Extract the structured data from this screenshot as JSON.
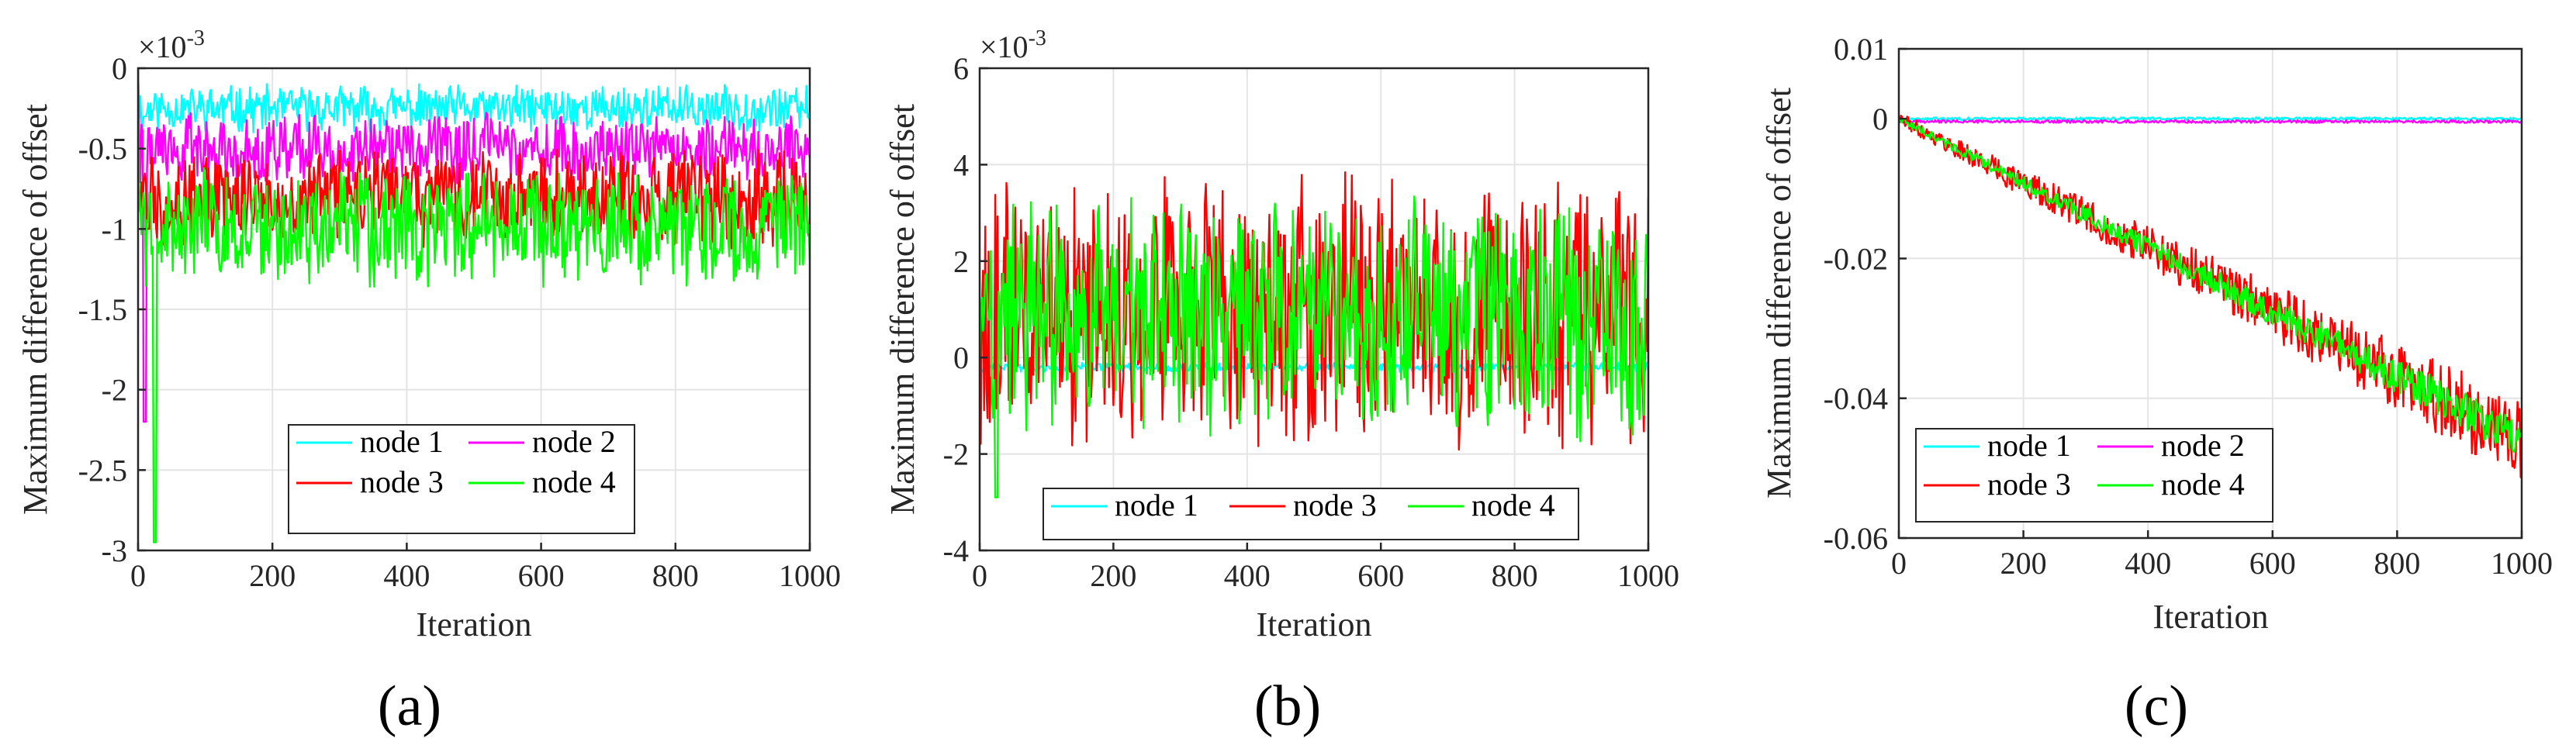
{
  "colors": {
    "node 1": "#00ffff",
    "node 2": "#ff00ff",
    "node 3": "#ff0000",
    "node 4": "#00ff00"
  },
  "chart_data": [
    {
      "panel": "(a)",
      "type": "line",
      "xlabel": "Iteration",
      "ylabel": "Maximum difference of offset",
      "exponent_label": "×10",
      "exponent_power": "-3",
      "xlim": [
        0,
        1000
      ],
      "ylim": [
        -3,
        0
      ],
      "xticks": [
        0,
        200,
        400,
        600,
        800,
        1000
      ],
      "xtick_labels": [
        "0",
        "200",
        "400",
        "600",
        "800",
        "1000"
      ],
      "yticks": [
        0,
        -0.5,
        -1,
        -1.5,
        -2,
        -2.5,
        -3
      ],
      "ytick_labels": [
        "0",
        "-0.5",
        "-1",
        "-1.5",
        "-2",
        "-2.5",
        "-3"
      ],
      "legend": {
        "position": "bottom-right",
        "columns": 2,
        "entries": [
          "node 1",
          "node 2",
          "node 3",
          "node 4"
        ]
      },
      "series": [
        {
          "name": "node 1",
          "shape": "noisy",
          "start": 0,
          "dip": [
            [
              10,
              -0.3
            ]
          ],
          "mean": -0.25,
          "amp": 0.12,
          "seed": 11
        },
        {
          "name": "node 2",
          "shape": "noisy",
          "start": 0,
          "dip": [
            [
              10,
              -2.2
            ]
          ],
          "mean": -0.5,
          "amp": 0.18,
          "seed": 22
        },
        {
          "name": "node 3",
          "shape": "noisy",
          "start": 0,
          "dip": [
            [
              15,
              -1.0
            ]
          ],
          "mean": -0.8,
          "amp": 0.25,
          "seed": 33
        },
        {
          "name": "node 4",
          "shape": "noisy",
          "start": 0,
          "dip": [
            [
              25,
              -2.95
            ]
          ],
          "mean": -1.0,
          "amp": 0.3,
          "seed": 44
        }
      ]
    },
    {
      "panel": "(b)",
      "type": "line",
      "xlabel": "Iteration",
      "ylabel": "Maximum difference of offset",
      "exponent_label": "×10",
      "exponent_power": "-3",
      "xlim": [
        0,
        1000
      ],
      "ylim": [
        -4,
        6
      ],
      "xticks": [
        0,
        200,
        400,
        600,
        800,
        1000
      ],
      "xtick_labels": [
        "0",
        "200",
        "400",
        "600",
        "800",
        "1000"
      ],
      "yticks": [
        6,
        4,
        2,
        0,
        -2,
        -4
      ],
      "ytick_labels": [
        "6",
        "4",
        "2",
        "0",
        "-2",
        "-4"
      ],
      "legend": {
        "position": "bottom",
        "columns": 3,
        "entries": [
          "node 1",
          "node 3",
          "node 4"
        ]
      },
      "series": [
        {
          "name": "node 1",
          "shape": "noisy",
          "start": 0,
          "dip": [],
          "mean": -0.2,
          "amp": 0.08,
          "seed": 55
        },
        {
          "name": "node 3",
          "shape": "noisy",
          "start": 0,
          "dip": [
            [
              20,
              -0.7
            ]
          ],
          "mean": 1.0,
          "amp": 2.3,
          "seed": 66
        },
        {
          "name": "node 4",
          "shape": "noisy",
          "start": 0,
          "dip": [
            [
              25,
              -2.9
            ]
          ],
          "mean": 0.8,
          "amp": 2.0,
          "seed": 77
        }
      ]
    },
    {
      "panel": "(c)",
      "type": "line",
      "xlabel": "Iteration",
      "ylabel": "Maximum difference of offset",
      "xlim": [
        0,
        1000
      ],
      "ylim": [
        -0.06,
        0.01
      ],
      "xticks": [
        0,
        200,
        400,
        600,
        800,
        1000
      ],
      "xtick_labels": [
        "0",
        "200",
        "400",
        "600",
        "800",
        "1000"
      ],
      "yticks": [
        0.01,
        0,
        -0.02,
        -0.04,
        -0.06
      ],
      "ytick_labels": [
        "0.01",
        "0",
        "-0.02",
        "-0.04",
        "-0.06"
      ],
      "legend": {
        "position": "bottom-left",
        "columns": 2,
        "entries": [
          "node 1",
          "node 2",
          "node 3",
          "node 4"
        ]
      },
      "series": [
        {
          "name": "node 1",
          "shape": "flat",
          "start": 0,
          "mean": 0.0,
          "amp": 0.0002,
          "seed": 88
        },
        {
          "name": "node 2",
          "shape": "flat",
          "start": 0,
          "mean": -0.0004,
          "amp": 0.0002,
          "seed": 99
        },
        {
          "name": "node 3",
          "shape": "drift",
          "start": 0,
          "end_mean": -0.046,
          "amp": 0.006,
          "seed": 111
        },
        {
          "name": "node 4",
          "shape": "drift",
          "start": 0,
          "end_mean": -0.046,
          "amp": 0.003,
          "seed": 122
        }
      ]
    }
  ]
}
